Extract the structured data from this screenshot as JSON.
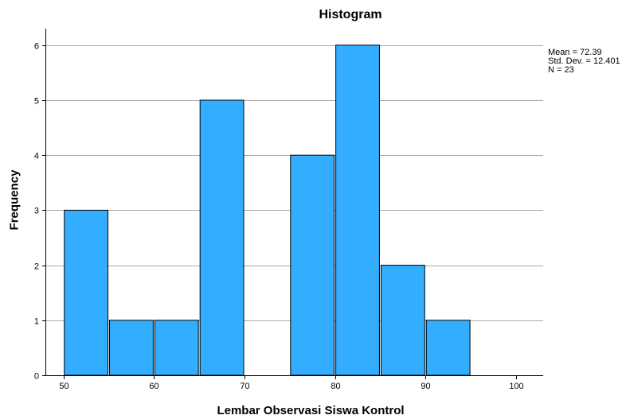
{
  "chart_data": {
    "type": "bar",
    "title": "Histogram",
    "xlabel": "Lembar Observasi Siswa Kontrol",
    "ylabel": "Frequency",
    "bin_edges": [
      50,
      55,
      60,
      65,
      70,
      75,
      80,
      85,
      90,
      95,
      100
    ],
    "values": [
      3,
      1,
      1,
      5,
      0,
      4,
      6,
      2,
      1,
      0
    ],
    "x_ticks": [
      "50",
      "60",
      "70",
      "80",
      "90",
      "100"
    ],
    "y_ticks": [
      "0",
      "1",
      "2",
      "3",
      "4",
      "5",
      "6"
    ],
    "xlim": [
      48,
      103
    ],
    "ylim": [
      0,
      6.3
    ],
    "grid": "horizontal",
    "bar_color": "#33adff",
    "bar_edge_color": "#000000",
    "stats": [
      "Mean = 72.39",
      "Std. Dev. = 12.401",
      "N = 23"
    ]
  }
}
